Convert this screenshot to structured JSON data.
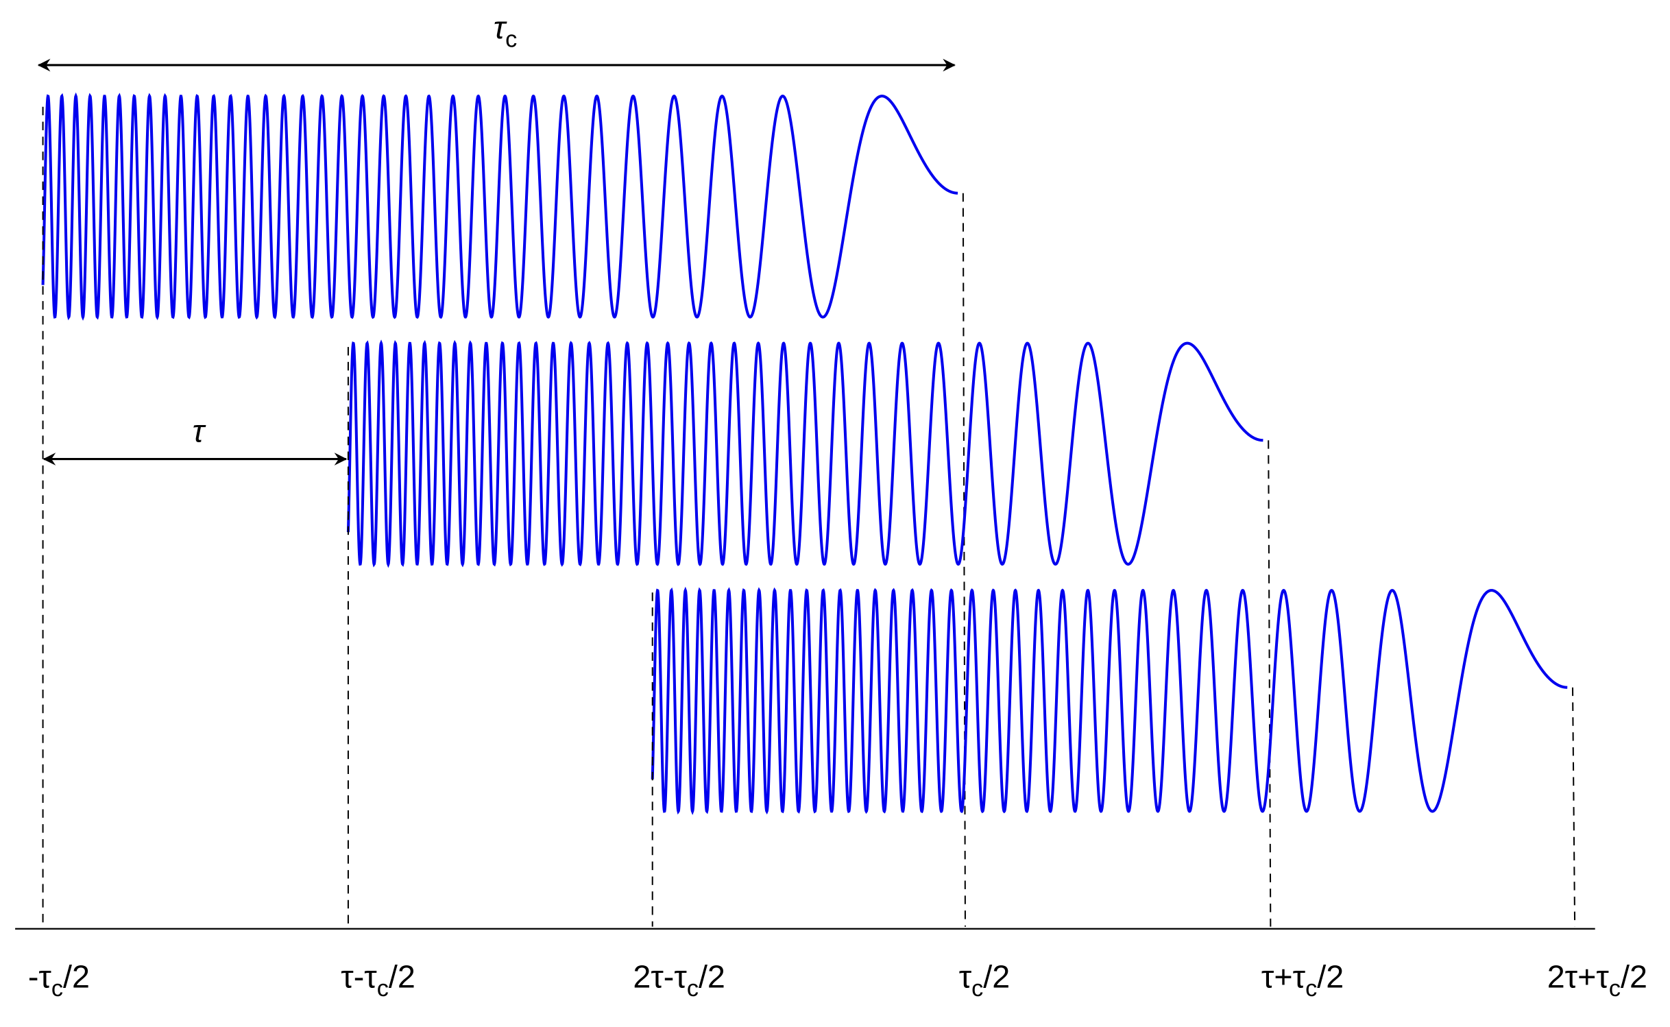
{
  "annotations": {
    "tau_c": {
      "symbol": "τ",
      "sub": "c"
    },
    "tau": "τ"
  },
  "axis_labels": [
    {
      "pre": "-τ",
      "sub": "c",
      "post": "/2"
    },
    {
      "pre": "τ-τ",
      "sub": "c",
      "post": "/2"
    },
    {
      "pre": "2τ-τ",
      "sub": "c",
      "post": "/2"
    },
    {
      "pre": "τ",
      "sub": "c",
      "post": "/2"
    },
    {
      "pre": "τ+τ",
      "sub": "c",
      "post": "/2"
    },
    {
      "pre": "2τ+τ",
      "sub": "c",
      "post": "/2"
    }
  ]
}
